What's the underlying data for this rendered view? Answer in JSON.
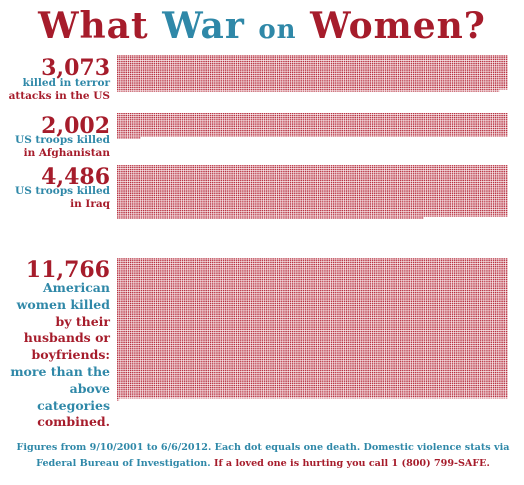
{
  "title": {
    "what": "What",
    "war": "War",
    "on": "on",
    "women": "Women?"
  },
  "colors": {
    "red": "#a61c2b",
    "blue": "#2f88a8",
    "dot": "#b52a3a"
  },
  "chart_data": {
    "type": "bar",
    "unit": "each dot equals one death",
    "categories": [
      "killed in terror attacks in the US",
      "US troops killed in Afghanistan",
      "US troops killed in Iraq",
      "American women killed by their husbands or boyfriends: more than the above categories combined."
    ],
    "values": [
      3073,
      2002,
      4486,
      11766
    ],
    "value_labels": [
      "3,073",
      "2,002",
      "4,486",
      "11,766"
    ],
    "label_lines": [
      [
        {
          "t": "killed in terror",
          "c": "blue"
        },
        {
          "t": "attacks in the US",
          "c": "red"
        }
      ],
      [
        {
          "t": "US troops killed",
          "c": "blue"
        },
        {
          "t": "in Afghanistan",
          "c": "red"
        }
      ],
      [
        {
          "t": "US troops killed",
          "c": "blue"
        },
        {
          "t": "in Iraq",
          "c": "red"
        }
      ],
      [
        {
          "t": "American",
          "c": "blue"
        },
        {
          "t": "women killed",
          "c": "blue"
        },
        {
          "t": "by their",
          "c": "red"
        },
        {
          "t": "husbands or",
          "c": "red"
        },
        {
          "t": "boyfriends:",
          "c": "red"
        },
        {
          "t": "more than the",
          "c": "blue"
        },
        {
          "t": "above",
          "c": "blue"
        },
        {
          "t": "categories",
          "c": "blue"
        },
        {
          "t": "combined.",
          "c": "red"
        }
      ]
    ]
  },
  "footer": {
    "part1": "Figures from 9/10/2001 to 6/6/2012. Each dot equals one death. Domestic violence stats",
    "part2": "via Federal Bureau of Investigation.",
    "part3": "If a loved one is hurting you call 1 (800) 799-SAFE."
  }
}
